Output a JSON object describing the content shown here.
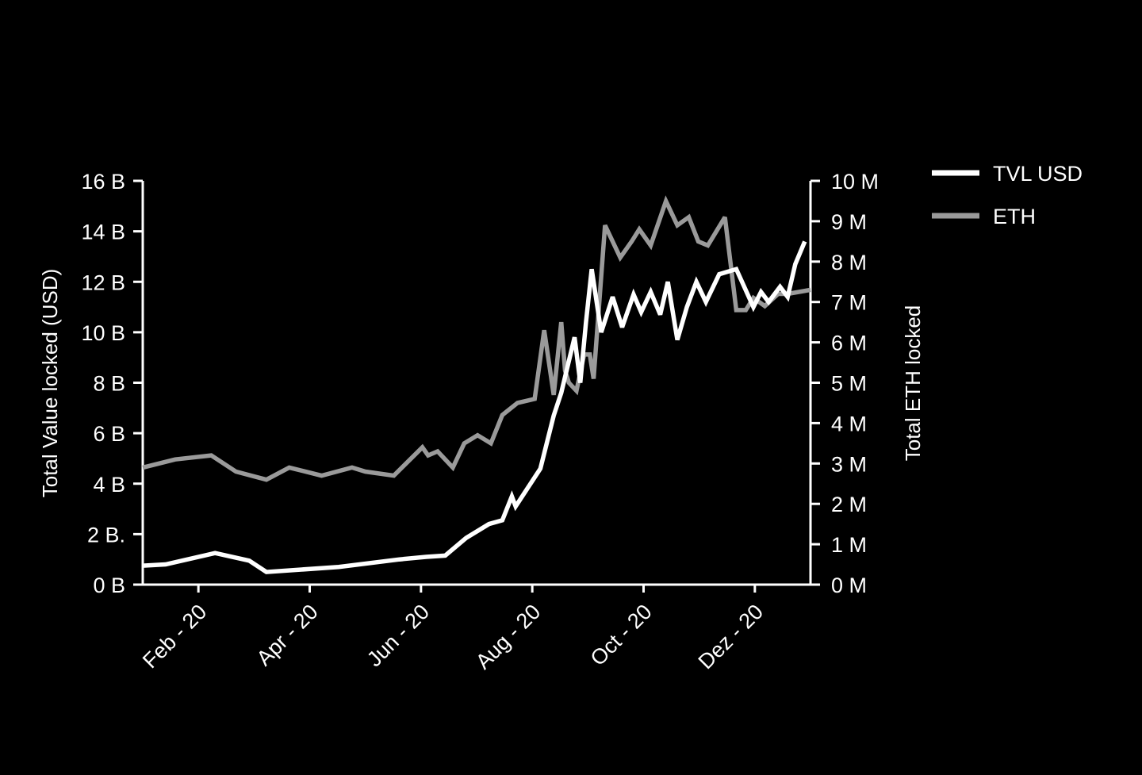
{
  "chart_data": {
    "type": "line",
    "ylabel": "Total Value locked (USD)",
    "y2label": "Total ETH locked",
    "xlabel": "",
    "x_ticks": [
      "Feb - 20",
      "Apr - 20",
      "Jun - 20",
      "Aug - 20",
      "Oct - 20",
      "Dez - 20"
    ],
    "y_ticks": [
      "0 B",
      "2 B.",
      "4 B",
      "6 B",
      "8 B",
      "10 B",
      "12 B",
      "14 B",
      "16 B"
    ],
    "y2_ticks": [
      "0 M",
      "1 M",
      "2 M",
      "3 M",
      "4 M",
      "5 M",
      "6 M",
      "7 M",
      "8 M",
      "9 M",
      "10 M"
    ],
    "ylim": [
      0,
      16
    ],
    "y2lim": [
      0,
      10
    ],
    "xlim": [
      "2020-01-15",
      "2020-12-31"
    ],
    "legend_position": "top-right",
    "series": [
      {
        "name": "TVL USD",
        "axis": "left",
        "color": "#ffffff",
        "x": [
          "2020-01-15",
          "2020-01-27",
          "2020-02-22",
          "2020-03-11",
          "2020-03-20",
          "2020-04-27",
          "2020-05-29",
          "2020-06-12",
          "2020-06-22",
          "2020-07-03",
          "2020-07-15",
          "2020-07-22",
          "2020-07-27",
          "2020-07-29",
          "2020-08-11",
          "2020-08-18",
          "2020-08-22",
          "2020-08-29",
          "2020-09-01",
          "2020-09-04",
          "2020-09-07",
          "2020-09-12",
          "2020-09-18",
          "2020-09-23",
          "2020-09-29",
          "2020-10-03",
          "2020-10-08",
          "2020-10-13",
          "2020-10-17",
          "2020-10-22",
          "2020-10-27",
          "2020-11-01",
          "2020-11-06",
          "2020-11-13",
          "2020-11-22",
          "2020-12-01",
          "2020-12-05",
          "2020-12-09",
          "2020-12-15",
          "2020-12-19",
          "2020-12-23",
          "2020-12-28"
        ],
        "values": [
          0.75,
          0.8,
          1.25,
          0.95,
          0.5,
          0.7,
          1.0,
          1.1,
          1.15,
          1.85,
          2.4,
          2.55,
          3.5,
          3.1,
          4.6,
          6.7,
          7.6,
          9.8,
          8.0,
          10.4,
          12.5,
          10.0,
          11.4,
          10.2,
          11.5,
          10.8,
          11.6,
          10.7,
          12.0,
          9.7,
          11.0,
          12.0,
          11.2,
          12.3,
          12.5,
          11.0,
          11.6,
          11.2,
          11.8,
          11.4,
          12.7,
          13.6
        ]
      },
      {
        "name": "ETH",
        "axis": "right",
        "color": "#9a9a9a",
        "x": [
          "2020-01-15",
          "2020-02-01",
          "2020-02-20",
          "2020-03-04",
          "2020-03-20",
          "2020-04-01",
          "2020-04-18",
          "2020-05-04",
          "2020-05-11",
          "2020-05-26",
          "2020-06-10",
          "2020-06-13",
          "2020-06-18",
          "2020-06-26",
          "2020-07-02",
          "2020-07-09",
          "2020-07-16",
          "2020-07-22",
          "2020-07-30",
          "2020-08-08",
          "2020-08-13",
          "2020-08-18",
          "2020-08-22",
          "2020-08-24",
          "2020-08-26",
          "2020-08-30",
          "2020-09-03",
          "2020-09-06",
          "2020-09-08",
          "2020-09-14",
          "2020-09-22",
          "2020-09-28",
          "2020-10-02",
          "2020-10-08",
          "2020-10-16",
          "2020-10-22",
          "2020-10-28",
          "2020-11-02",
          "2020-11-07",
          "2020-11-16",
          "2020-11-22",
          "2020-11-27",
          "2020-12-01",
          "2020-12-07",
          "2020-12-14",
          "2020-12-19",
          "2020-12-31"
        ],
        "values": [
          2.9,
          3.1,
          3.2,
          2.8,
          2.6,
          2.9,
          2.7,
          2.9,
          2.8,
          2.7,
          3.4,
          3.2,
          3.3,
          2.9,
          3.5,
          3.7,
          3.5,
          4.2,
          4.5,
          4.6,
          6.3,
          4.7,
          6.5,
          5.3,
          5.0,
          4.8,
          5.7,
          5.7,
          5.1,
          8.9,
          8.1,
          8.5,
          8.8,
          8.4,
          9.5,
          8.9,
          9.1,
          8.5,
          8.4,
          9.1,
          6.8,
          6.8,
          7.1,
          6.9,
          7.2,
          7.2,
          7.3
        ]
      }
    ]
  }
}
